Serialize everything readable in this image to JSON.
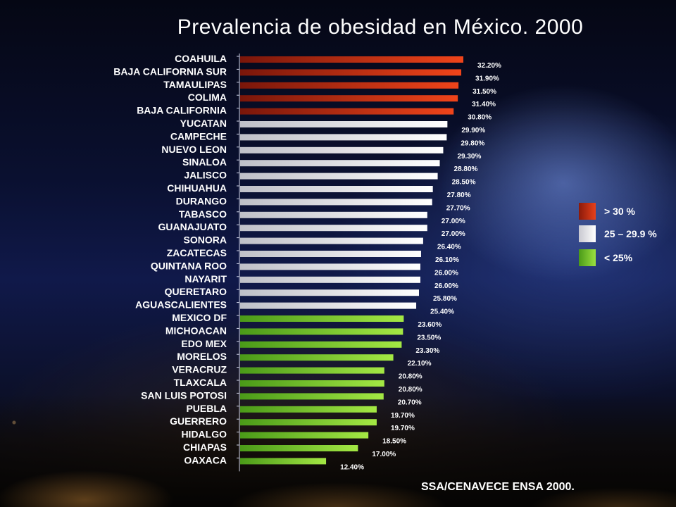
{
  "title": "Prevalencia de obesidad en México. 2000",
  "source": "SSA/CENAVECE ENSA 2000.",
  "legend": [
    {
      "label": "> 30 %",
      "color": "#d83a18"
    },
    {
      "label": "25 – 29.9 %",
      "color": "#e8e8ec"
    },
    {
      "label": "< 25%",
      "color": "#7ccc30"
    }
  ],
  "chart_data": {
    "type": "bar",
    "orientation": "horizontal",
    "title": "Prevalencia de obesidad en México. 2000",
    "xlim": [
      0,
      40
    ],
    "categories": [
      "COAHUILA",
      "BAJA CALIFORNIA SUR",
      "TAMAULIPAS",
      "COLIMA",
      "BAJA CALIFORNIA",
      "YUCATAN",
      "CAMPECHE",
      "NUEVO LEON",
      "SINALOA",
      "JALISCO",
      "CHIHUAHUA",
      "DURANGO",
      "TABASCO",
      "GUANAJUATO",
      "SONORA",
      "ZACATECAS",
      "QUINTANA ROO",
      "NAYARIT",
      "QUERETARO",
      "AGUASCALIENTES",
      "MEXICO DF",
      "MICHOACAN",
      "EDO MEX",
      "MORELOS",
      "VERACRUZ",
      "TLAXCALA",
      "SAN LUIS POTOSI",
      "PUEBLA",
      "GUERRERO",
      "HIDALGO",
      "CHIAPAS",
      "OAXACA"
    ],
    "values": [
      32.2,
      31.9,
      31.5,
      31.4,
      30.8,
      29.9,
      29.8,
      29.3,
      28.8,
      28.5,
      27.8,
      27.7,
      27.0,
      27.0,
      26.4,
      26.1,
      26.0,
      26.0,
      25.8,
      25.4,
      23.6,
      23.5,
      23.3,
      22.1,
      20.8,
      20.8,
      20.7,
      19.7,
      19.7,
      18.5,
      17.0,
      12.4
    ],
    "value_labels": [
      "32.20%",
      "31.90%",
      "31.50%",
      "31.40%",
      "30.80%",
      "29.90%",
      "29.80%",
      "29.30%",
      "28.80%",
      "28.50%",
      "27.80%",
      "27.70%",
      "27.00%",
      "27.00%",
      "26.40%",
      "26.10%",
      "26.00%",
      "26.00%",
      "25.80%",
      "25.40%",
      "23.60%",
      "23.50%",
      "23.30%",
      "22.10%",
      "20.80%",
      "20.80%",
      "20.70%",
      "19.70%",
      "19.70%",
      "18.50%",
      "17.00%",
      "12.40%"
    ],
    "group_colors": {
      "high": "#d83a18",
      "mid": "#e8e8ec",
      "low": "#7ccc30"
    },
    "thresholds": [
      25,
      30
    ]
  }
}
